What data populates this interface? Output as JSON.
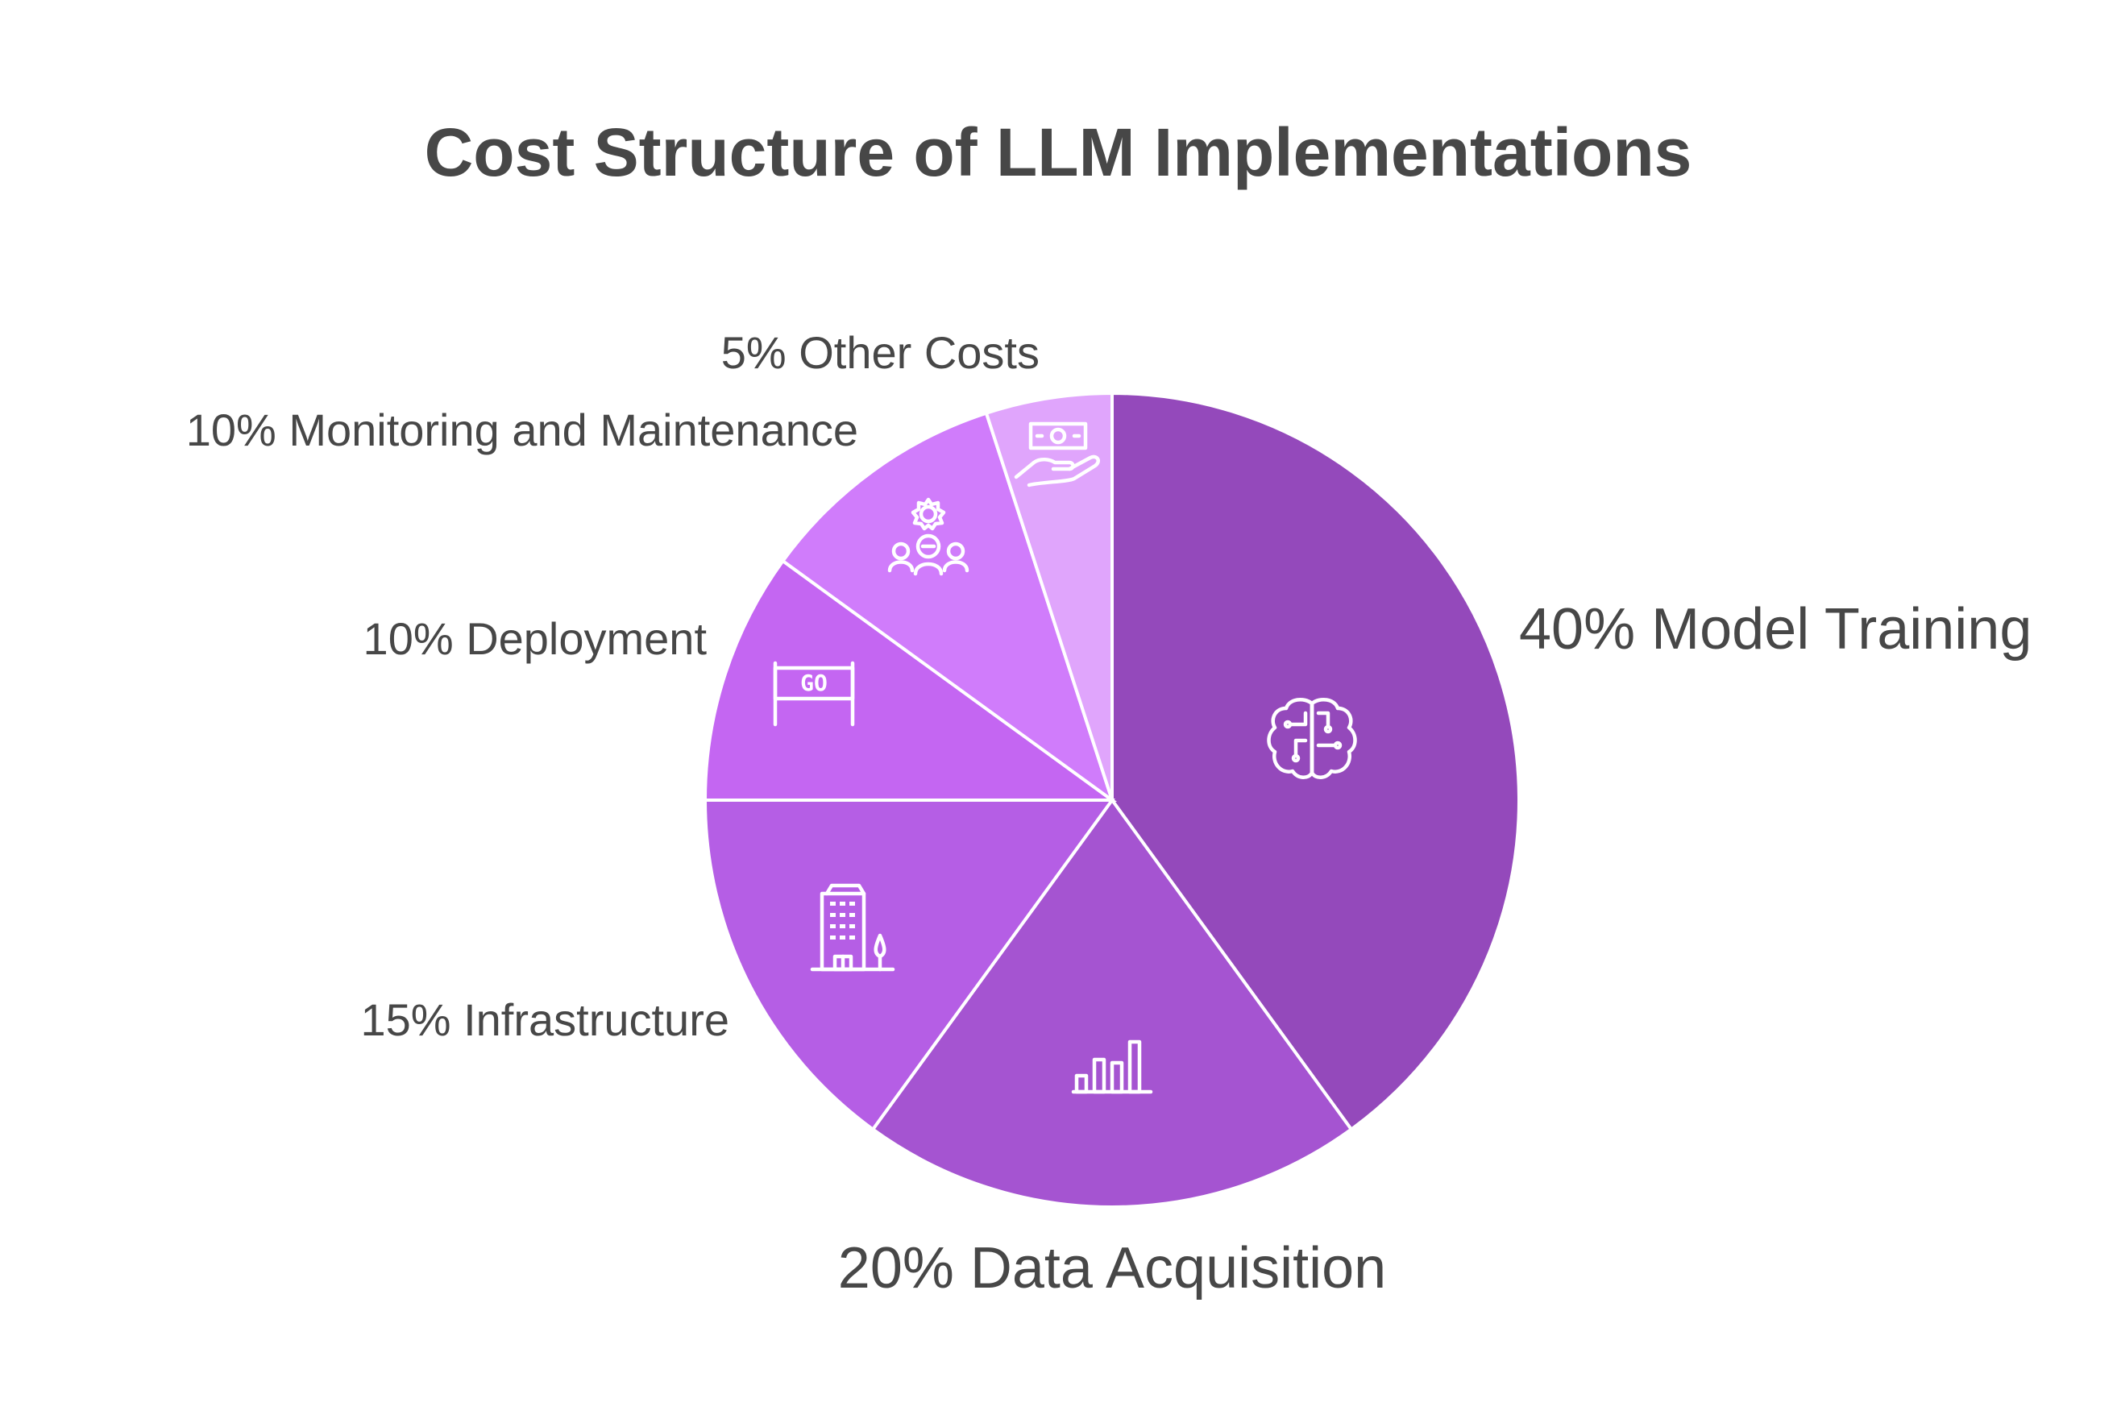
{
  "chart_data": {
    "type": "pie",
    "title": "Cost Structure of LLM Implementations",
    "slices": [
      {
        "name": "Model Training",
        "value": 40,
        "label": "40% Model Training",
        "color": "#9449bb",
        "icon": "brain-circuit-icon"
      },
      {
        "name": "Data Acquisition",
        "value": 20,
        "label": "20% Data Acquisition",
        "color": "#a554d1",
        "icon": "bar-chart-icon"
      },
      {
        "name": "Infrastructure",
        "value": 15,
        "label": "15% Infrastructure",
        "color": "#b55ee5",
        "icon": "office-building-icon"
      },
      {
        "name": "Deployment",
        "value": 10,
        "label": "10% Deployment",
        "color": "#c466f2",
        "icon": "go-sign-icon"
      },
      {
        "name": "Monitoring and Maintenance",
        "value": 10,
        "label": "10% Monitoring and Maintenance",
        "color": "#d07cfb",
        "icon": "team-gear-icon"
      },
      {
        "name": "Other Costs",
        "value": 5,
        "label": "5% Other Costs",
        "color": "#e0a5fc",
        "icon": "money-hand-icon"
      }
    ]
  }
}
